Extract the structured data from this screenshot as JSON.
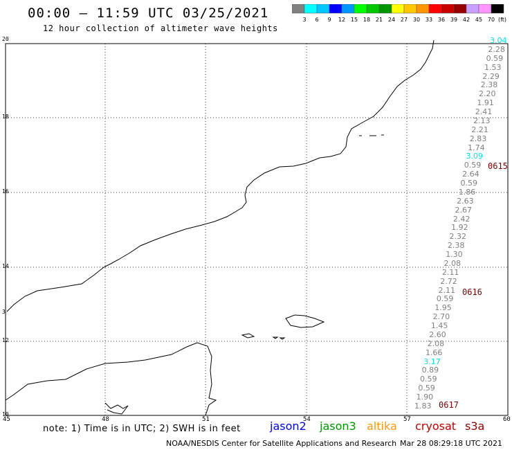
{
  "header": {
    "title": "00:00 – 11:59 UTC 03/25/2021",
    "subtitle": "12 hour collection of altimeter wave heights"
  },
  "color_scale": {
    "colors": [
      "#808080",
      "#00ffff",
      "#00c8ff",
      "#0000ff",
      "#0096ff",
      "#00ff00",
      "#00c800",
      "#009600",
      "#ffff00",
      "#ffc800",
      "#ff9600",
      "#ff0000",
      "#c80000",
      "#960000",
      "#c8a0ff",
      "#ff96ff",
      "#000000"
    ],
    "labels": [
      "3",
      "6",
      "9",
      "12",
      "15",
      "18",
      "21",
      "24",
      "27",
      "30",
      "33",
      "36",
      "39",
      "42",
      "45",
      "70"
    ],
    "unit": "(ft)"
  },
  "map": {
    "lat_ticks": [
      "20",
      "18",
      "16",
      "14",
      "12",
      "10"
    ],
    "lon_ticks": [
      "45",
      "48",
      "51",
      "54",
      "57",
      "60"
    ],
    "land_labels": [
      "3",
      "5"
    ]
  },
  "swh_labels": [
    {
      "v": "3.04",
      "color": "#00e6e6"
    },
    {
      "v": "2.28",
      "color": "#7f7f7f"
    },
    {
      "v": "0.59",
      "color": "#7f7f7f"
    },
    {
      "v": "1.53",
      "color": "#7f7f7f"
    },
    {
      "v": "2.29",
      "color": "#7f7f7f"
    },
    {
      "v": "2.38",
      "color": "#7f7f7f"
    },
    {
      "v": "2.20",
      "color": "#7f7f7f"
    },
    {
      "v": "1.91",
      "color": "#7f7f7f"
    },
    {
      "v": "2.41",
      "color": "#7f7f7f"
    },
    {
      "v": "2.13",
      "color": "#7f7f7f"
    },
    {
      "v": "2.21",
      "color": "#7f7f7f"
    },
    {
      "v": "2.83",
      "color": "#7f7f7f"
    },
    {
      "v": "1.74",
      "color": "#7f7f7f"
    },
    {
      "v": "3.09",
      "color": "#00e6e6"
    },
    {
      "v": "0.59",
      "color": "#7f7f7f"
    },
    {
      "v": "2.64",
      "color": "#7f7f7f"
    },
    {
      "v": "0.59",
      "color": "#7f7f7f"
    },
    {
      "v": "1.86",
      "color": "#7f7f7f"
    },
    {
      "v": "2.63",
      "color": "#7f7f7f"
    },
    {
      "v": "2.67",
      "color": "#7f7f7f"
    },
    {
      "v": "2.42",
      "color": "#7f7f7f"
    },
    {
      "v": "1.92",
      "color": "#7f7f7f"
    },
    {
      "v": "2.32",
      "color": "#7f7f7f"
    },
    {
      "v": "2.38",
      "color": "#7f7f7f"
    },
    {
      "v": "1.30",
      "color": "#7f7f7f"
    },
    {
      "v": "2.08",
      "color": "#7f7f7f"
    },
    {
      "v": "2.11",
      "color": "#7f7f7f"
    },
    {
      "v": "2.72",
      "color": "#7f7f7f"
    },
    {
      "v": "2.11",
      "color": "#7f7f7f"
    },
    {
      "v": "0.59",
      "color": "#7f7f7f"
    },
    {
      "v": "1.95",
      "color": "#7f7f7f"
    },
    {
      "v": "2.70",
      "color": "#7f7f7f"
    },
    {
      "v": "1.45",
      "color": "#7f7f7f"
    },
    {
      "v": "2.60",
      "color": "#7f7f7f"
    },
    {
      "v": "2.08",
      "color": "#7f7f7f"
    },
    {
      "v": "1.66",
      "color": "#7f7f7f"
    },
    {
      "v": "3.17",
      "color": "#00e6e6"
    },
    {
      "v": "0.89",
      "color": "#7f7f7f"
    },
    {
      "v": "0.59",
      "color": "#7f7f7f"
    },
    {
      "v": "0.59",
      "color": "#7f7f7f"
    },
    {
      "v": "1.90",
      "color": "#7f7f7f"
    },
    {
      "v": "1.83",
      "color": "#7f7f7f"
    }
  ],
  "time_labels": [
    {
      "v": "0615",
      "color": "#800000"
    },
    {
      "v": "0616",
      "color": "#800000"
    },
    {
      "v": "0617",
      "color": "#800000"
    }
  ],
  "footer": {
    "note": "note: 1) Time is in UTC; 2) SWH is in feet",
    "satellites": [
      {
        "name": "jason2",
        "color": "#0000ff"
      },
      {
        "name": "jason3",
        "color": "#009600"
      },
      {
        "name": "altika",
        "color": "#ff9600"
      },
      {
        "name": "cryosat",
        "color": "#c80000"
      },
      {
        "name": "s3a",
        "color": "#960000"
      }
    ],
    "credit": "NOAA/NESDIS Center for Satellite Applications and Research",
    "timestamp": "Mar 28 08:29:18 UTC 2021"
  }
}
